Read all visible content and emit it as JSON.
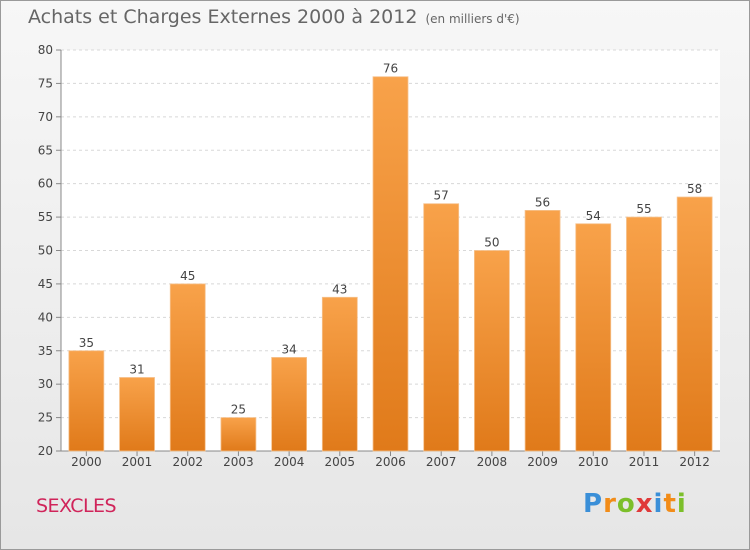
{
  "title": "Achats et Charges Externes 2000 à 2012",
  "unit_note": "(en milliers d'€)",
  "town": "SEXCLES",
  "logo": {
    "letters": [
      "P",
      "r",
      "o",
      "x",
      "i",
      "t",
      "i"
    ],
    "colors": [
      "#3a8fd8",
      "#f28c18",
      "#7cbf2a",
      "#e03a3a",
      "#3a8fd8",
      "#f28c18",
      "#7cbf2a"
    ]
  },
  "chart_data": {
    "type": "bar",
    "categories": [
      "2000",
      "2001",
      "2002",
      "2003",
      "2004",
      "2005",
      "2006",
      "2007",
      "2008",
      "2009",
      "2010",
      "2011",
      "2012"
    ],
    "values": [
      35,
      31,
      45,
      25,
      34,
      43,
      76,
      57,
      50,
      56,
      54,
      55,
      58
    ],
    "ylim": [
      20,
      80
    ],
    "yticks": [
      20,
      25,
      30,
      35,
      40,
      45,
      50,
      55,
      60,
      65,
      70,
      75,
      80
    ],
    "grid": true,
    "bar_color": "#f0922e"
  }
}
